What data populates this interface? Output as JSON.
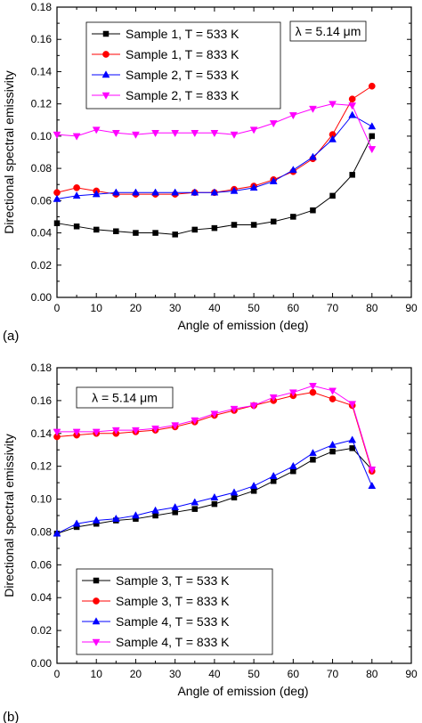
{
  "chart_data": [
    {
      "type": "line",
      "panel_label": "(a)",
      "xlabel": "Angle of emission (deg)",
      "ylabel": "Directional spectral emissivity",
      "xlim": [
        0,
        90
      ],
      "ylim": [
        0.0,
        0.18
      ],
      "x_ticks": [
        "0",
        "10",
        "20",
        "30",
        "40",
        "50",
        "60",
        "70",
        "80",
        "90"
      ],
      "y_ticks": [
        "0.00",
        "0.02",
        "0.04",
        "0.06",
        "0.08",
        "0.10",
        "0.12",
        "0.14",
        "0.16",
        "0.18"
      ],
      "annotation": "λ = 5.14 μm",
      "legend_position": "top-left",
      "grid": false,
      "series": [
        {
          "name": "Sample 1, T = 533 K",
          "color": "#000000",
          "marker": "square",
          "x": [
            0,
            5,
            10,
            15,
            20,
            25,
            30,
            35,
            40,
            45,
            50,
            55,
            60,
            65,
            70,
            75,
            80
          ],
          "y": [
            0.046,
            0.044,
            0.042,
            0.041,
            0.04,
            0.04,
            0.039,
            0.042,
            0.043,
            0.045,
            0.045,
            0.047,
            0.05,
            0.054,
            0.063,
            0.076,
            0.1
          ]
        },
        {
          "name": "Sample 1, T = 833 K",
          "color": "#ff0000",
          "marker": "circle",
          "x": [
            0,
            5,
            10,
            15,
            20,
            25,
            30,
            35,
            40,
            45,
            50,
            55,
            60,
            65,
            70,
            75,
            80
          ],
          "y": [
            0.065,
            0.068,
            0.066,
            0.064,
            0.064,
            0.064,
            0.064,
            0.065,
            0.065,
            0.067,
            0.069,
            0.073,
            0.078,
            0.086,
            0.101,
            0.123,
            0.131
          ]
        },
        {
          "name": "Sample 2, T = 533 K",
          "color": "#0000ff",
          "marker": "triangle-up",
          "x": [
            0,
            5,
            10,
            15,
            20,
            25,
            30,
            35,
            40,
            45,
            50,
            55,
            60,
            65,
            70,
            75,
            80
          ],
          "y": [
            0.061,
            0.063,
            0.064,
            0.065,
            0.065,
            0.065,
            0.065,
            0.065,
            0.065,
            0.066,
            0.068,
            0.072,
            0.079,
            0.087,
            0.098,
            0.113,
            0.106
          ]
        },
        {
          "name": "Sample 2, T = 833 K",
          "color": "#ff00ff",
          "marker": "triangle-down",
          "x": [
            0,
            5,
            10,
            15,
            20,
            25,
            30,
            35,
            40,
            45,
            50,
            55,
            60,
            65,
            70,
            75,
            80
          ],
          "y": [
            0.101,
            0.1,
            0.104,
            0.102,
            0.101,
            0.102,
            0.102,
            0.102,
            0.102,
            0.101,
            0.104,
            0.108,
            0.113,
            0.117,
            0.12,
            0.119,
            0.092
          ]
        }
      ]
    },
    {
      "type": "line",
      "panel_label": "(b)",
      "xlabel": "Angle of emission (deg)",
      "ylabel": "Directional spectral emissivity",
      "xlim": [
        0,
        90
      ],
      "ylim": [
        0.0,
        0.18
      ],
      "x_ticks": [
        "0",
        "10",
        "20",
        "30",
        "40",
        "50",
        "60",
        "70",
        "80",
        "90"
      ],
      "y_ticks": [
        "0.00",
        "0.02",
        "0.04",
        "0.06",
        "0.08",
        "0.10",
        "0.12",
        "0.14",
        "0.16",
        "0.18"
      ],
      "annotation": "λ = 5.14 μm",
      "legend_position": "bottom-left",
      "grid": false,
      "series": [
        {
          "name": "Sample 3, T = 533 K",
          "color": "#000000",
          "marker": "square",
          "x": [
            0,
            5,
            10,
            15,
            20,
            25,
            30,
            35,
            40,
            45,
            50,
            55,
            60,
            65,
            70,
            75,
            80
          ],
          "y": [
            0.079,
            0.083,
            0.085,
            0.087,
            0.088,
            0.09,
            0.092,
            0.094,
            0.097,
            0.101,
            0.105,
            0.111,
            0.117,
            0.124,
            0.129,
            0.131,
            0.118
          ]
        },
        {
          "name": "Sample 3, T = 833 K",
          "color": "#ff0000",
          "marker": "circle",
          "x": [
            0,
            5,
            10,
            15,
            20,
            25,
            30,
            35,
            40,
            45,
            50,
            55,
            60,
            65,
            70,
            75,
            80
          ],
          "y": [
            0.138,
            0.139,
            0.14,
            0.14,
            0.141,
            0.142,
            0.144,
            0.147,
            0.151,
            0.154,
            0.157,
            0.16,
            0.163,
            0.165,
            0.161,
            0.157,
            0.117
          ]
        },
        {
          "name": "Sample 4, T = 533 K",
          "color": "#0000ff",
          "marker": "triangle-up",
          "x": [
            0,
            5,
            10,
            15,
            20,
            25,
            30,
            35,
            40,
            45,
            50,
            55,
            60,
            65,
            70,
            75,
            80
          ],
          "y": [
            0.079,
            0.085,
            0.087,
            0.088,
            0.09,
            0.093,
            0.095,
            0.098,
            0.101,
            0.104,
            0.108,
            0.114,
            0.12,
            0.128,
            0.133,
            0.136,
            0.108
          ]
        },
        {
          "name": "Sample 4, T = 833 K",
          "color": "#ff00ff",
          "marker": "triangle-down",
          "x": [
            0,
            5,
            10,
            15,
            20,
            25,
            30,
            35,
            40,
            45,
            50,
            55,
            60,
            65,
            70,
            75,
            80
          ],
          "y": [
            0.141,
            0.141,
            0.141,
            0.142,
            0.142,
            0.143,
            0.145,
            0.148,
            0.152,
            0.155,
            0.157,
            0.162,
            0.165,
            0.169,
            0.166,
            0.158,
            0.118
          ]
        }
      ]
    }
  ]
}
